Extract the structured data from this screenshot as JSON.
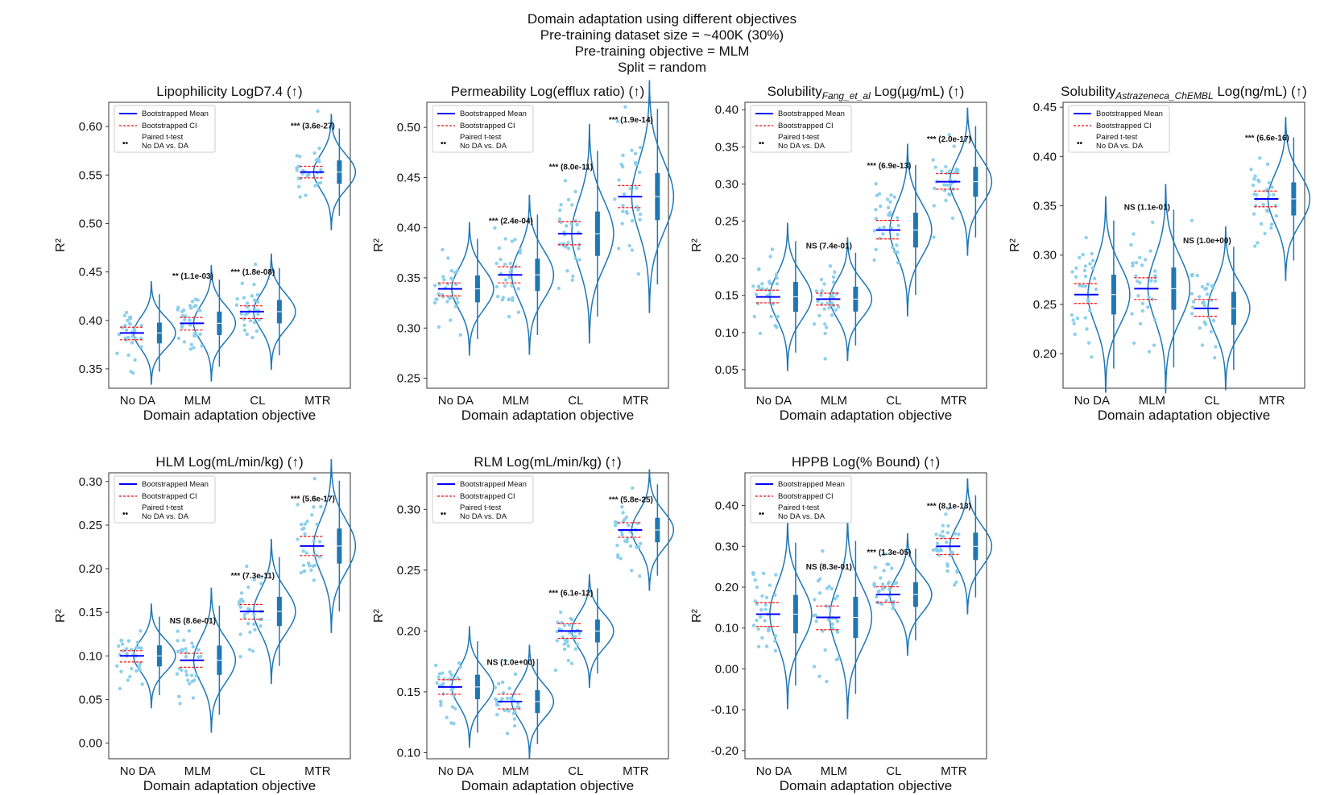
{
  "figure": {
    "suptitle": [
      "Domain adaptation using different objectives",
      "Pre-training dataset size = ~400K (30%)",
      "Pre-training objective = MLM",
      "Split = random"
    ]
  },
  "legend": {
    "mean_label": "Bootstrapped Mean",
    "ci_label": "Bootstrapped CI",
    "ttest_label_1": "Paired t-test",
    "ttest_label_2": "No DA vs. DA",
    "ttest_marker": "••"
  },
  "colors": {
    "kde": "#1f77b4",
    "points": "#87ceeb",
    "mean": "#0000ff",
    "ci": "#ff0000",
    "box": "#1f77b4"
  },
  "chart_data": [
    {
      "type": "raincloud",
      "title": "Lipophilicity LogD7.4 (↑)",
      "title_main": "Lipophilicity LogD7.4 (↑)",
      "xlabel": "Domain adaptation objective",
      "ylabel": "R²",
      "categories": [
        "No DA",
        "MLM",
        "CL",
        "MTR"
      ],
      "ylim": [
        0.33,
        0.625
      ],
      "yticks": [
        0.35,
        0.4,
        0.45,
        0.5,
        0.55,
        0.6
      ],
      "ytick_labels": [
        "0.35",
        "0.40",
        "0.45",
        "0.50",
        "0.55",
        "0.60"
      ],
      "means": [
        0.387,
        0.397,
        0.409,
        0.553
      ],
      "ci": [
        [
          0.38,
          0.393
        ],
        [
          0.39,
          0.403
        ],
        [
          0.402,
          0.415
        ],
        [
          0.547,
          0.559
        ]
      ],
      "spread": [
        0.016,
        0.018,
        0.018,
        0.018
      ],
      "annotations": [
        "",
        "** (1.1e-03)",
        "*** (1.8e-08)",
        "*** (3.6e-27)"
      ],
      "annot_y": [
        null,
        0.443,
        0.447,
        0.598
      ]
    },
    {
      "type": "raincloud",
      "title": "Permeability Log(efflux ratio) (↑)",
      "title_main": "Permeability Log(efflux ratio) (↑)",
      "xlabel": "Domain adaptation objective",
      "ylabel": "R²",
      "categories": [
        "No DA",
        "MLM",
        "CL",
        "MTR"
      ],
      "ylim": [
        0.24,
        0.525
      ],
      "yticks": [
        0.25,
        0.3,
        0.35,
        0.4,
        0.45,
        0.5
      ],
      "ytick_labels": [
        "0.25",
        "0.30",
        "0.35",
        "0.40",
        "0.45",
        "0.50"
      ],
      "means": [
        0.339,
        0.353,
        0.394,
        0.431
      ],
      "ci": [
        [
          0.332,
          0.345
        ],
        [
          0.345,
          0.361
        ],
        [
          0.383,
          0.406
        ],
        [
          0.42,
          0.442
        ]
      ],
      "spread": [
        0.02,
        0.024,
        0.033,
        0.035
      ],
      "annotations": [
        "",
        "*** (2.4e-04)",
        "*** (8.0e-11)",
        "*** (1.9e-14)"
      ],
      "annot_y": [
        null,
        0.404,
        0.458,
        0.505
      ]
    },
    {
      "type": "raincloud",
      "title": "Solubility Fang_et_al Log(µg/mL) (↑)",
      "title_main": "Solubility",
      "title_sub": "Fang_et_al",
      "title_rest": " Log(µg/mL) (↑)",
      "xlabel": "Domain adaptation objective",
      "ylabel": "R²",
      "categories": [
        "No DA",
        "MLM",
        "CL",
        "MTR"
      ],
      "ylim": [
        0.025,
        0.41
      ],
      "yticks": [
        0.05,
        0.1,
        0.15,
        0.2,
        0.25,
        0.3,
        0.35,
        0.4
      ],
      "ytick_labels": [
        "0.05",
        "0.10",
        "0.15",
        "0.20",
        "0.25",
        "0.30",
        "0.35",
        "0.40"
      ],
      "means": [
        0.148,
        0.145,
        0.238,
        0.303
      ],
      "ci": [
        [
          0.14,
          0.157
        ],
        [
          0.137,
          0.153
        ],
        [
          0.226,
          0.251
        ],
        [
          0.293,
          0.314
        ]
      ],
      "spread": [
        0.03,
        0.025,
        0.035,
        0.03
      ],
      "annotations": [
        "",
        "NS (7.4e-01)",
        "*** (6.9e-13)",
        "*** (2.0e-17)"
      ],
      "annot_y": [
        null,
        0.213,
        0.321,
        0.357
      ]
    },
    {
      "type": "raincloud",
      "title": "Solubility Astrazeneca_ChEMBL Log(ng/mL) (↑)",
      "title_main": "Solubility",
      "title_sub": "Astrazeneca_ChEMBL",
      "title_rest": " Log(ng/mL) (↑)",
      "xlabel": "Domain adaptation objective",
      "ylabel": "R²",
      "categories": [
        "No DA",
        "MLM",
        "CL",
        "MTR"
      ],
      "ylim": [
        0.165,
        0.455
      ],
      "yticks": [
        0.2,
        0.25,
        0.3,
        0.35,
        0.4,
        0.45
      ],
      "ytick_labels": [
        "0.20",
        "0.25",
        "0.30",
        "0.35",
        "0.40",
        "0.45"
      ],
      "means": [
        0.26,
        0.266,
        0.246,
        0.357
      ],
      "ci": [
        [
          0.251,
          0.271
        ],
        [
          0.255,
          0.277
        ],
        [
          0.238,
          0.255
        ],
        [
          0.349,
          0.365
        ]
      ],
      "spread": [
        0.03,
        0.032,
        0.025,
        0.025
      ],
      "annotations": [
        "",
        "NS (1.1e-01)",
        "NS (1.0e+00)",
        "*** (6.6e-16)"
      ],
      "annot_y": [
        null,
        0.346,
        0.312,
        0.416
      ]
    },
    {
      "type": "raincloud",
      "title": "HLM Log(mL/min/kg) (↑)",
      "title_main": "HLM Log(mL/min/kg) (↑)",
      "xlabel": "Domain adaptation objective",
      "ylabel": "R²",
      "categories": [
        "No DA",
        "MLM",
        "CL",
        "MTR"
      ],
      "ylim": [
        -0.018,
        0.31
      ],
      "yticks": [
        0.0,
        0.05,
        0.1,
        0.15,
        0.2,
        0.25,
        0.3
      ],
      "ytick_labels": [
        "0.00",
        "0.05",
        "0.10",
        "0.15",
        "0.20",
        "0.25",
        "0.30"
      ],
      "means": [
        0.1,
        0.095,
        0.151,
        0.226
      ],
      "ci": [
        [
          0.093,
          0.106
        ],
        [
          0.087,
          0.103
        ],
        [
          0.142,
          0.159
        ],
        [
          0.215,
          0.237
        ]
      ],
      "spread": [
        0.018,
        0.025,
        0.025,
        0.03
      ],
      "annotations": [
        "",
        "NS (8.6e-01)",
        "*** (7.3e-11)",
        "*** (5.6e-17)"
      ],
      "annot_y": [
        null,
        0.137,
        0.189,
        0.277
      ]
    },
    {
      "type": "raincloud",
      "title": "RLM Log(mL/min/kg) (↑)",
      "title_main": "RLM Log(mL/min/kg) (↑)",
      "xlabel": "Domain adaptation objective",
      "ylabel": "R²",
      "categories": [
        "No DA",
        "MLM",
        "CL",
        "MTR"
      ],
      "ylim": [
        0.095,
        0.33
      ],
      "yticks": [
        0.1,
        0.15,
        0.2,
        0.25,
        0.3
      ],
      "ytick_labels": [
        "0.10",
        "0.15",
        "0.20",
        "0.25",
        "0.30"
      ],
      "means": [
        0.154,
        0.142,
        0.2,
        0.283
      ],
      "ci": [
        [
          0.148,
          0.16
        ],
        [
          0.136,
          0.148
        ],
        [
          0.194,
          0.206
        ],
        [
          0.277,
          0.289
        ]
      ],
      "spread": [
        0.015,
        0.014,
        0.014,
        0.015
      ],
      "annotations": [
        "",
        "NS (1.0e+00)",
        "*** (6.1e-12)",
        "*** (5.8e-25)"
      ],
      "annot_y": [
        null,
        0.172,
        0.229,
        0.306
      ]
    },
    {
      "type": "raincloud",
      "title": "HPPB Log(% Bound) (↑)",
      "title_main": "HPPB Log(% Bound) (↑)",
      "xlabel": "Domain adaptation objective",
      "ylabel": "R²",
      "categories": [
        "No DA",
        "MLM",
        "CL",
        "MTR"
      ],
      "ylim": [
        -0.22,
        0.48
      ],
      "yticks": [
        -0.2,
        -0.1,
        0.0,
        0.1,
        0.2,
        0.3,
        0.4
      ],
      "ytick_labels": [
        "-0.20",
        "-0.10",
        "0.00",
        "0.10",
        "0.20",
        "0.30",
        "0.40"
      ],
      "means": [
        0.134,
        0.126,
        0.182,
        0.3
      ],
      "ci": [
        [
          0.104,
          0.162
        ],
        [
          0.096,
          0.154
        ],
        [
          0.163,
          0.201
        ],
        [
          0.28,
          0.319
        ]
      ],
      "spread": [
        0.07,
        0.075,
        0.045,
        0.05
      ],
      "annotations": [
        "",
        "NS (8.3e-01)",
        "*** (1.3e-05)",
        "*** (8.1e-13)"
      ],
      "annot_y": [
        null,
        0.243,
        0.279,
        0.392
      ]
    }
  ]
}
